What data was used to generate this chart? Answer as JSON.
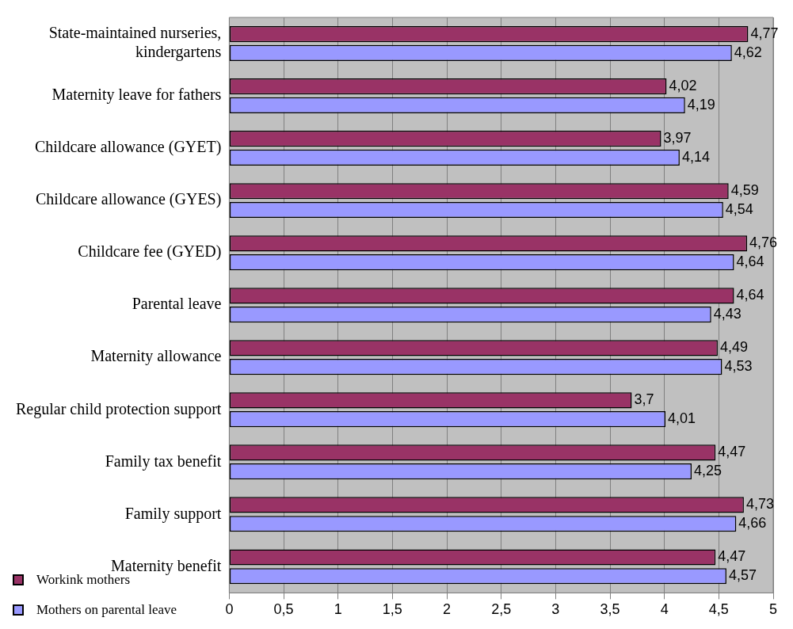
{
  "chart_data": {
    "type": "bar",
    "orientation": "horizontal",
    "categories": [
      "State-maintained nurseries, kindergartens",
      "Maternity leave for fathers",
      "Childcare allowance (GYET)",
      "Childcare allowance (GYES)",
      "Childcare fee (GYED)",
      "Parental leave",
      "Maternity allowance",
      "Regular child protection support",
      "Family tax benefit",
      "Family support",
      "Maternity benefit"
    ],
    "series": [
      {
        "name": "Workink mothers",
        "color": "#993366",
        "values": [
          4.77,
          4.02,
          3.97,
          4.59,
          4.76,
          4.64,
          4.49,
          3.7,
          4.47,
          4.73,
          4.47
        ],
        "value_labels": [
          "4,77",
          "4,02",
          "3,97",
          "4,59",
          "4,76",
          "4,64",
          "4,49",
          "3,7",
          "4,47",
          "4,73",
          "4,47"
        ]
      },
      {
        "name": "Mothers on parental leave",
        "color": "#9999ff",
        "values": [
          4.62,
          4.19,
          4.14,
          4.54,
          4.64,
          4.43,
          4.53,
          4.01,
          4.25,
          4.66,
          4.57
        ],
        "value_labels": [
          "4,62",
          "4,19",
          "4,14",
          "4,54",
          "4,64",
          "4,43",
          "4,53",
          "4,01",
          "4,25",
          "4,66",
          "4,57"
        ]
      }
    ],
    "xlim": [
      0,
      5
    ],
    "xticks": [
      0,
      {
        "value": 0.5,
        "label": "0,5"
      },
      1,
      {
        "value": 1.5,
        "label": "1,5"
      },
      2,
      {
        "value": 2.5,
        "label": "2,5"
      },
      3,
      {
        "value": 3.5,
        "label": "3,5"
      },
      4,
      {
        "value": 4.5,
        "label": "4,5"
      },
      5
    ],
    "grid": "x",
    "legend": "bottom left"
  }
}
